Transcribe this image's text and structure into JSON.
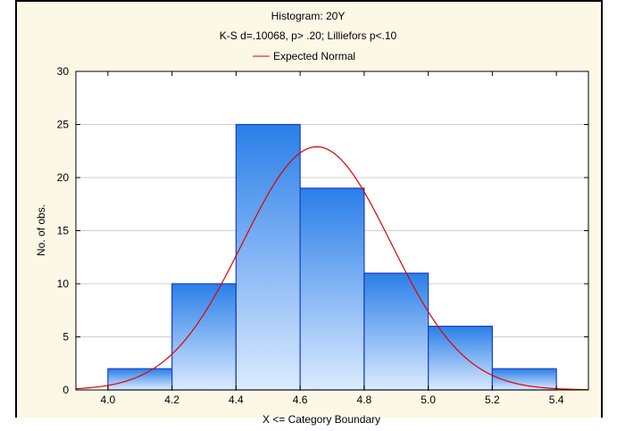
{
  "colors": {
    "background": "#FDF7E6",
    "plot_background": "#FFFFFF",
    "bar_top": "#2A7FE8",
    "bar_bottom": "#DCEBFF",
    "bar_stroke": "#1A3FC0",
    "curve": "#E00000"
  },
  "chart_data": {
    "type": "bar",
    "title": "Histogram: 20Y",
    "subtitle": "K-S d=.10068, p> .20; Lilliefors p<.10",
    "legend": [
      {
        "name": "Expected Normal",
        "color": "#E00000",
        "placement": "top"
      }
    ],
    "xlabel": "X <= Category Boundary",
    "ylabel": "No. of obs.",
    "xlim": [
      3.9,
      5.5
    ],
    "ylim": [
      0,
      30
    ],
    "x_ticks": [
      "4.0",
      "4.2",
      "4.4",
      "4.6",
      "4.8",
      "5.0",
      "5.2",
      "5.4"
    ],
    "y_ticks": [
      "0",
      "5",
      "10",
      "15",
      "20",
      "25",
      "30"
    ],
    "bins": [
      {
        "from": 4.0,
        "to": 4.2,
        "count": 2
      },
      {
        "from": 4.2,
        "to": 4.4,
        "count": 10
      },
      {
        "from": 4.4,
        "to": 4.6,
        "count": 25
      },
      {
        "from": 4.6,
        "to": 4.8,
        "count": 19
      },
      {
        "from": 4.8,
        "to": 5.0,
        "count": 11
      },
      {
        "from": 5.0,
        "to": 5.2,
        "count": 6
      },
      {
        "from": 5.2,
        "to": 5.4,
        "count": 2
      }
    ],
    "expected_normal": {
      "mean": 4.652,
      "sd": 0.231,
      "peak": 22.9
    },
    "grid": true
  }
}
